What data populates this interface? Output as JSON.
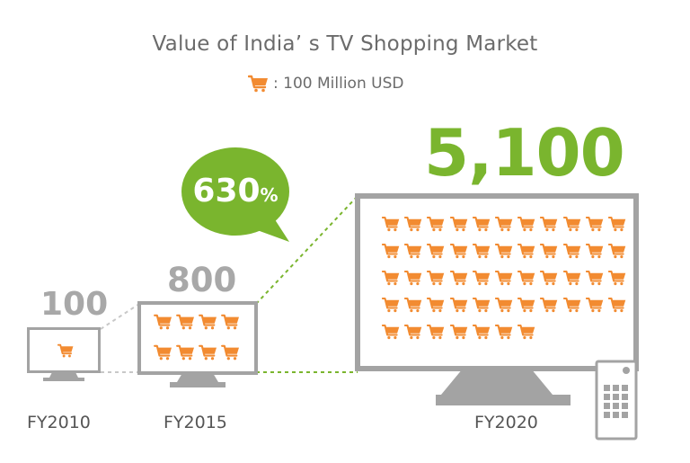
{
  "title": "Value of India’ s TV Shopping Market",
  "legend": {
    "icon": "shopping-cart-icon",
    "text": ": 100 Million USD"
  },
  "colors": {
    "green": "#7ab52e",
    "orange": "#f28b31",
    "gray": "#a8a8a8",
    "screen_border": "#a3a3a3"
  },
  "tvs": [
    {
      "year": "FY2010",
      "value": "100",
      "carts": 1
    },
    {
      "year": "FY2015",
      "value": "800",
      "carts": 8
    },
    {
      "year": "FY2020",
      "value": "5,100",
      "carts": 51
    }
  ],
  "growth": {
    "number": "630",
    "unit": "%"
  }
}
